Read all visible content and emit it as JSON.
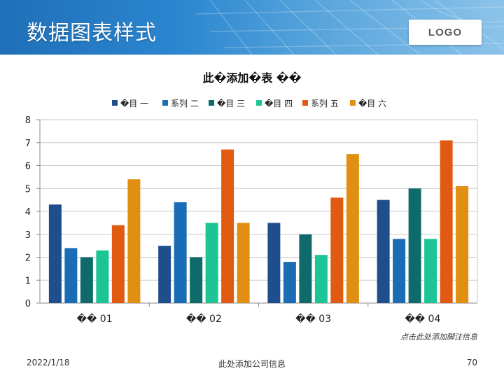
{
  "header": {
    "title": "数据图表样式",
    "logo_text": "LOGO"
  },
  "chart_data": {
    "type": "bar",
    "title": "此�添加�表 ��",
    "categories": [
      "�� 01",
      "�� 02",
      "�� 03",
      "�� 04"
    ],
    "series": [
      {
        "name": "�目 一",
        "color": "#1f4e8c",
        "values": [
          4.3,
          2.5,
          3.5,
          4.5
        ]
      },
      {
        "name": "系列 二",
        "color": "#1a6db5",
        "values": [
          2.4,
          4.4,
          1.8,
          2.8
        ]
      },
      {
        "name": "�目 三",
        "color": "#0f6b6b",
        "values": [
          2.0,
          2.0,
          3.0,
          5.0
        ]
      },
      {
        "name": "�目 四",
        "color": "#1dc495",
        "values": [
          2.3,
          3.5,
          2.1,
          2.8
        ]
      },
      {
        "name": "系列 五",
        "color": "#e05a12",
        "values": [
          3.4,
          6.7,
          4.6,
          7.1
        ]
      },
      {
        "name": "�目 六",
        "color": "#e08f12",
        "values": [
          5.4,
          3.5,
          6.5,
          5.1
        ]
      }
    ],
    "ylim": [
      0,
      8
    ],
    "yticks": [
      "0",
      "1",
      "2",
      "3",
      "4",
      "5",
      "6",
      "7",
      "8"
    ],
    "grid": true,
    "legend_position": "top",
    "xlabel": "",
    "ylabel": ""
  },
  "footnote": "点击此处添加脚注信息",
  "footer": {
    "date": "2022/1/18",
    "company": "此处添加公司信息",
    "page": "70"
  }
}
